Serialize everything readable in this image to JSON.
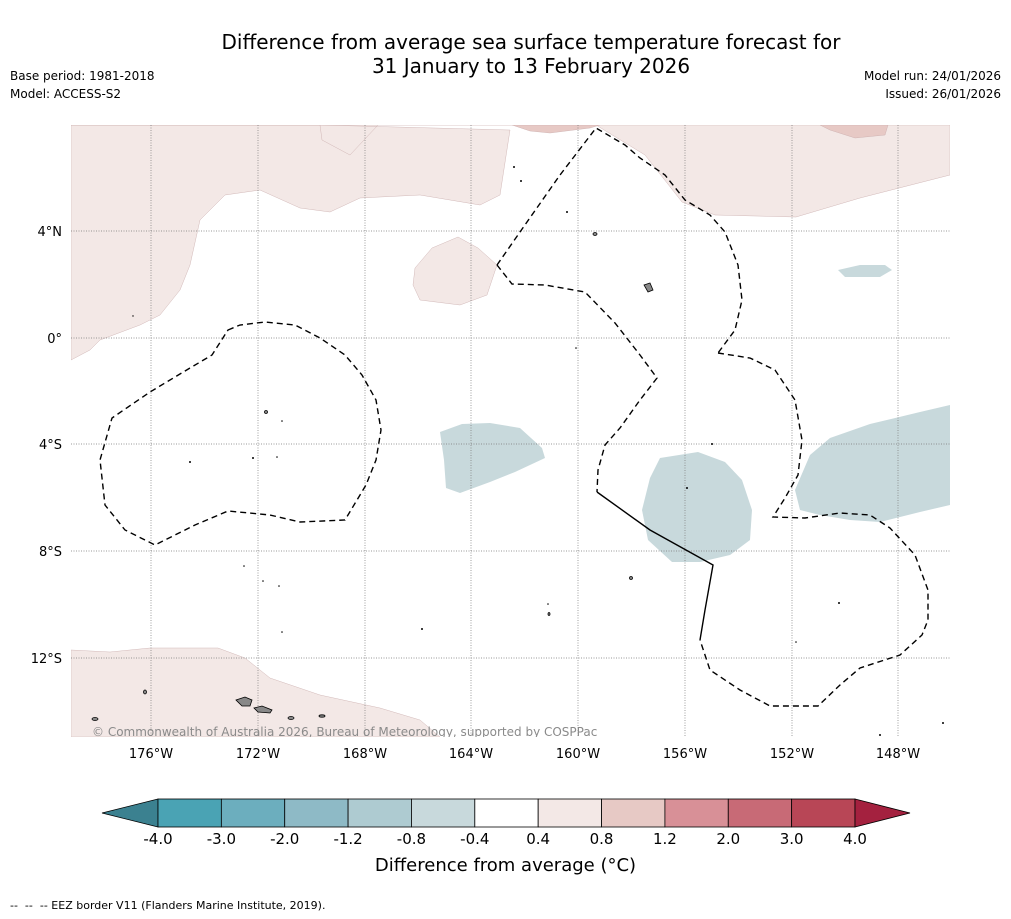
{
  "header": {
    "title_line1": "Difference from average sea surface temperature forecast for",
    "title_line2": "31 January to 13 February 2026",
    "base_period": "Base period: 1981-2018",
    "model": "Model: ACCESS-S2",
    "model_run": "Model run: 24/01/2026",
    "issued": "Issued: 26/01/2026"
  },
  "map": {
    "lon_ticks": [
      "176°W",
      "172°W",
      "168°W",
      "164°W",
      "160°W",
      "156°W",
      "152°W",
      "148°W"
    ],
    "lat_ticks": [
      "4°N",
      "0°",
      "4°S",
      "8°S",
      "12°S"
    ],
    "copyright": "© Commonwealth of Australia 2026, Bureau of Meteorology, supported by COSPPac"
  },
  "colorbar": {
    "labels": [
      "-4.0",
      "-3.0",
      "-2.0",
      "-1.2",
      "-0.8",
      "-0.4",
      "0.4",
      "0.8",
      "1.2",
      "2.0",
      "3.0",
      "4.0"
    ],
    "colors": [
      "#4aa3b4",
      "#6caebe",
      "#8ebac6",
      "#aecbd1",
      "#c8d9dc",
      "#ffffff",
      "#f3e8e6",
      "#e7c9c5",
      "#d89097",
      "#c86a76",
      "#b84656"
    ],
    "under_color": "#3b8190",
    "over_color": "#a4213f",
    "label": "Difference from average (°C)"
  },
  "legend": {
    "eez_text": "-- EEZ border V11 (Flanders Marine Institute, 2019)."
  }
}
